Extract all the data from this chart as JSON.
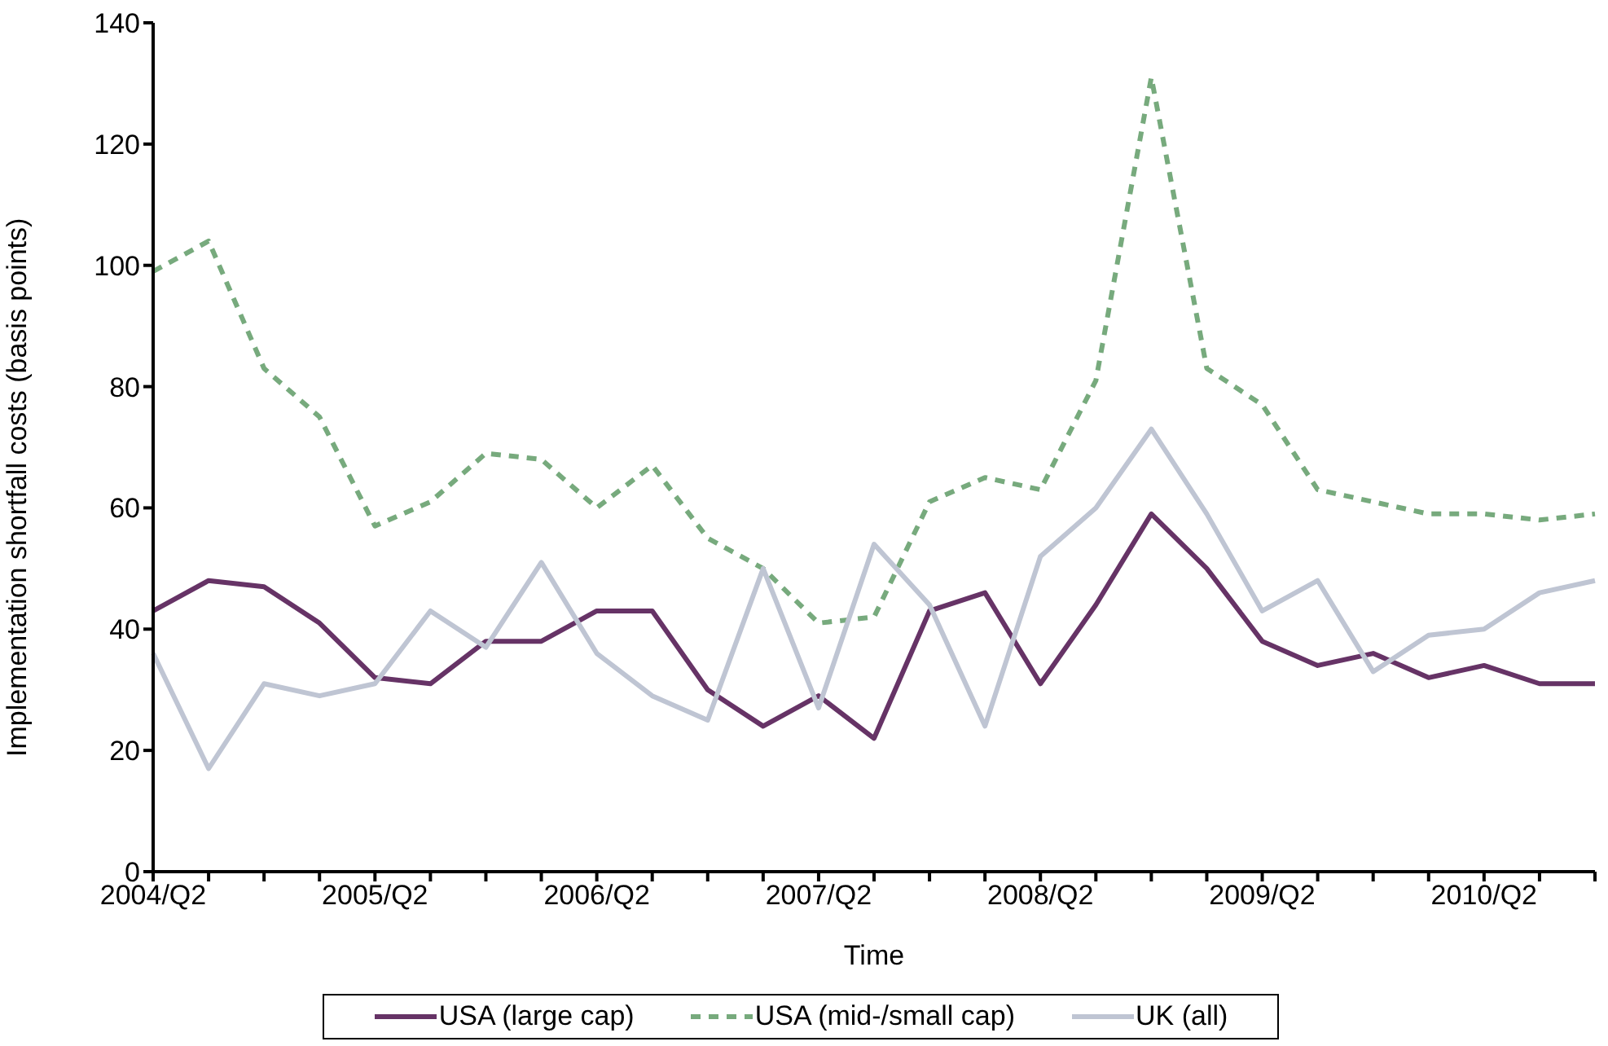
{
  "chart_data": {
    "type": "line",
    "xlabel": "Time",
    "ylabel": "Implementation shortfall costs (basis points)",
    "categories": [
      "2004/Q2",
      null,
      null,
      null,
      "2005/Q2",
      null,
      null,
      null,
      "2006/Q2",
      null,
      null,
      null,
      "2007/Q2",
      null,
      null,
      null,
      "2008/Q2",
      null,
      null,
      null,
      "2009/Q2",
      null,
      null,
      null,
      "2010/Q2",
      null,
      null
    ],
    "series": [
      {
        "name": "USA (large cap)",
        "color": "#663366",
        "line_style": "solid",
        "values": [
          43,
          48,
          47,
          41,
          32,
          31,
          38,
          38,
          43,
          43,
          30,
          24,
          29,
          22,
          43,
          46,
          31,
          44,
          59,
          50,
          38,
          34,
          36,
          32,
          34,
          31,
          31
        ]
      },
      {
        "name": "USA (mid-/small cap)",
        "color": "#77aa7d",
        "line_style": "dashed",
        "values": [
          99,
          104,
          83,
          75,
          57,
          61,
          69,
          68,
          60,
          67,
          55,
          50,
          41,
          42,
          61,
          65,
          63,
          81,
          131,
          83,
          77,
          63,
          61,
          59,
          59,
          58,
          59
        ]
      },
      {
        "name": "UK (all)",
        "color": "#bfc5d3",
        "line_style": "solid",
        "values": [
          36,
          17,
          31,
          29,
          31,
          43,
          37,
          51,
          36,
          29,
          25,
          50,
          27,
          54,
          44,
          24,
          52,
          60,
          73,
          59,
          43,
          48,
          33,
          39,
          40,
          46,
          48
        ]
      }
    ],
    "ylim": [
      0,
      140
    ],
    "yticks": [
      0,
      20,
      40,
      60,
      80,
      100,
      120,
      140
    ],
    "grid": false,
    "legend": "bottom",
    "marker": "none"
  }
}
